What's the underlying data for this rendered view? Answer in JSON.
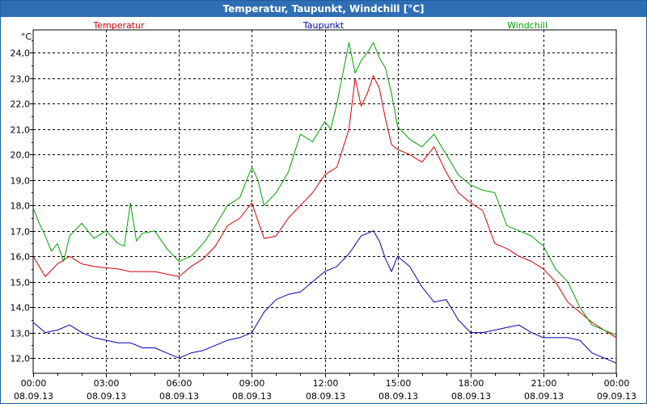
{
  "window": {
    "title": "Temperatur, Taupunkt, Windchill [°C]"
  },
  "chart_data": {
    "type": "line",
    "title": "Temperatur, Taupunkt, Windchill [°C]",
    "ylabel": "°C",
    "xlabel": "",
    "ylim": [
      11.4,
      24.9
    ],
    "xlim": [
      0,
      24
    ],
    "grid": true,
    "yticks": [
      12,
      13,
      14,
      15,
      16,
      17,
      18,
      19,
      20,
      21,
      22,
      23,
      24
    ],
    "ytick_labels": [
      "12,0",
      "13,0",
      "14,0",
      "15,0",
      "16,0",
      "17,0",
      "18,0",
      "19,0",
      "20,0",
      "21,0",
      "22,0",
      "23,0",
      "24,0"
    ],
    "xticks": [
      {
        "x": 0,
        "time": "00:00",
        "date": "08.09.13"
      },
      {
        "x": 3,
        "time": "03:00",
        "date": "08.09.13"
      },
      {
        "x": 6,
        "time": "06:00",
        "date": "08.09.13"
      },
      {
        "x": 9,
        "time": "09:00",
        "date": "08.09.13"
      },
      {
        "x": 12,
        "time": "12:00",
        "date": "08.09.13"
      },
      {
        "x": 15,
        "time": "15:00",
        "date": "08.09.13"
      },
      {
        "x": 18,
        "time": "18:00",
        "date": "08.09.13"
      },
      {
        "x": 21,
        "time": "21:00",
        "date": "08.09.13"
      },
      {
        "x": 24,
        "time": "00:00",
        "date": "09.09.13"
      }
    ],
    "series": [
      {
        "name": "Temperatur",
        "color": "#d40000",
        "x": [
          0,
          0.5,
          1,
          1.5,
          2,
          2.5,
          3,
          3.5,
          4,
          4.5,
          5,
          5.5,
          6,
          6.5,
          7,
          7.5,
          8,
          8.5,
          9,
          9.5,
          10,
          10.5,
          11,
          11.5,
          12,
          12.5,
          13,
          13.25,
          13.5,
          13.75,
          14,
          14.25,
          14.5,
          14.75,
          15,
          15.5,
          16,
          16.5,
          17,
          17.5,
          18,
          18.5,
          19,
          19.5,
          20,
          20.5,
          21,
          21.5,
          22,
          22.5,
          23,
          23.5,
          24
        ],
        "values": [
          16.0,
          15.2,
          15.7,
          16.0,
          15.7,
          15.6,
          15.55,
          15.5,
          15.4,
          15.4,
          15.4,
          15.3,
          15.2,
          15.6,
          15.9,
          16.4,
          17.2,
          17.5,
          18.1,
          16.7,
          16.8,
          17.5,
          18.0,
          18.5,
          19.2,
          19.5,
          21.0,
          23.0,
          21.9,
          22.4,
          23.1,
          22.6,
          21.4,
          20.4,
          20.2,
          20.0,
          19.7,
          20.3,
          19.3,
          18.5,
          18.1,
          17.8,
          16.5,
          16.3,
          16.0,
          15.8,
          15.5,
          15.0,
          14.2,
          13.8,
          13.4,
          13.1,
          12.8
        ]
      },
      {
        "name": "Taupunkt",
        "color": "#0000b4",
        "x": [
          0,
          0.5,
          1,
          1.5,
          2,
          2.5,
          3,
          3.5,
          4,
          4.5,
          5,
          5.5,
          6,
          6.5,
          7,
          7.5,
          8,
          8.5,
          9,
          9.5,
          10,
          10.5,
          11,
          11.5,
          12,
          12.5,
          13,
          13.5,
          14,
          14.25,
          14.5,
          14.75,
          15,
          15.5,
          16,
          16.5,
          17,
          17.5,
          18,
          18.5,
          19,
          19.5,
          20,
          20.5,
          21,
          21.5,
          22,
          22.5,
          23,
          23.5,
          24
        ],
        "values": [
          13.4,
          13.0,
          13.1,
          13.3,
          13.0,
          12.8,
          12.7,
          12.6,
          12.6,
          12.4,
          12.4,
          12.2,
          12.0,
          12.2,
          12.3,
          12.5,
          12.7,
          12.8,
          13.0,
          13.8,
          14.3,
          14.5,
          14.6,
          15.0,
          15.4,
          15.6,
          16.1,
          16.8,
          17.0,
          16.6,
          15.9,
          15.4,
          16.0,
          15.6,
          14.8,
          14.2,
          14.3,
          13.5,
          13.0,
          13.0,
          13.1,
          13.2,
          13.3,
          13.0,
          12.8,
          12.8,
          12.8,
          12.7,
          12.2,
          12.0,
          11.8
        ]
      },
      {
        "name": "Windchill",
        "color": "#00a000",
        "x": [
          0,
          0.25,
          0.5,
          0.75,
          1,
          1.25,
          1.5,
          2,
          2.5,
          3,
          3.5,
          3.75,
          4,
          4.25,
          4.5,
          5,
          5.5,
          6,
          6.5,
          7,
          7.5,
          8,
          8.5,
          9,
          9.25,
          9.5,
          10,
          10.5,
          11,
          11.5,
          12,
          12.25,
          12.5,
          13,
          13.25,
          13.5,
          13.75,
          14,
          14.25,
          14.5,
          14.75,
          15,
          15.5,
          16,
          16.5,
          17,
          17.5,
          18,
          18.5,
          19,
          19.5,
          20,
          20.5,
          21,
          21.5,
          22,
          22.5,
          23,
          23.5,
          24
        ],
        "values": [
          17.9,
          17.3,
          16.8,
          16.2,
          16.5,
          15.8,
          16.8,
          17.3,
          16.7,
          17.0,
          16.5,
          16.4,
          18.1,
          16.6,
          16.9,
          17.0,
          16.3,
          15.8,
          16.0,
          16.5,
          17.2,
          18.0,
          18.3,
          19.5,
          19.0,
          18.0,
          18.5,
          19.3,
          20.8,
          20.5,
          21.3,
          21.0,
          22.0,
          24.4,
          23.2,
          23.7,
          24.0,
          24.4,
          23.8,
          23.4,
          22.4,
          21.1,
          20.6,
          20.3,
          20.8,
          20.0,
          19.2,
          18.8,
          18.6,
          18.5,
          17.2,
          17.0,
          16.8,
          16.4,
          15.5,
          15.0,
          14.0,
          13.3,
          13.1,
          12.9
        ]
      }
    ]
  }
}
